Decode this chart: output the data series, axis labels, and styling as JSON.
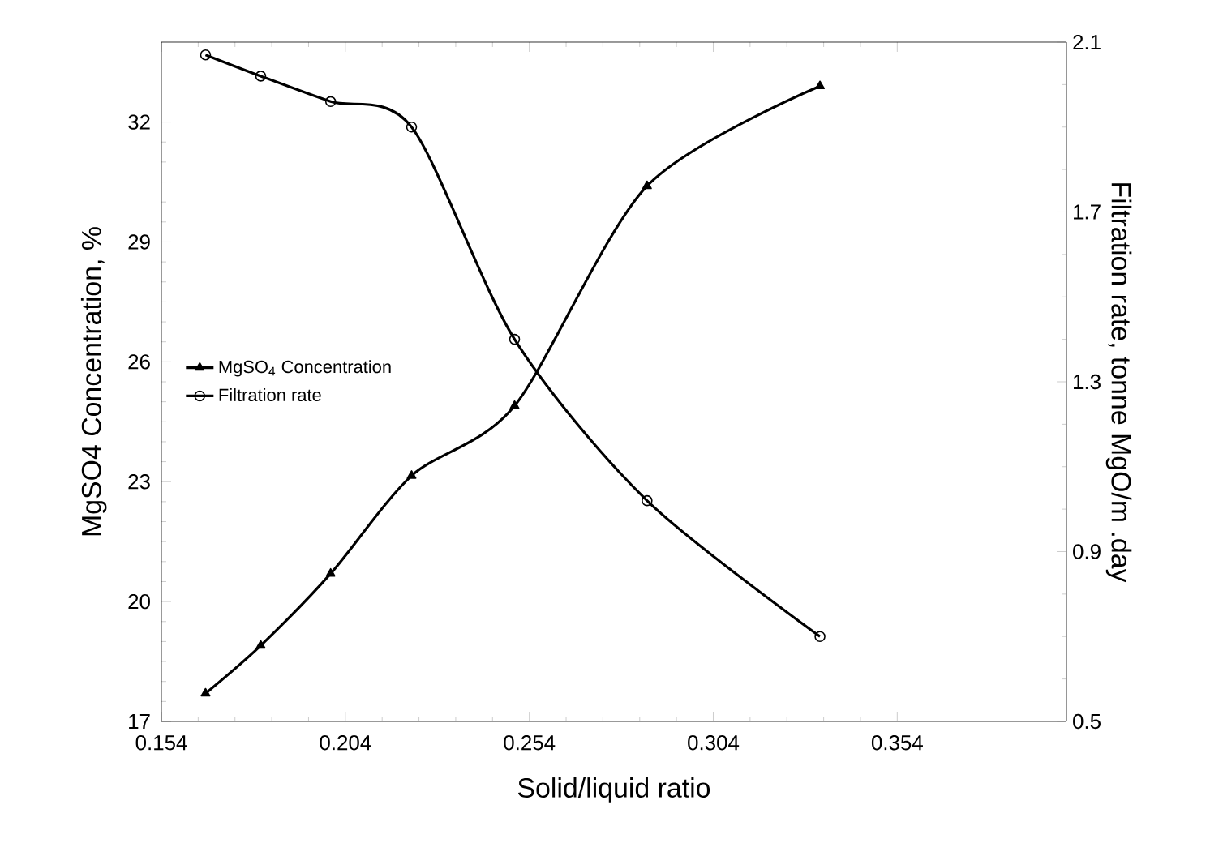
{
  "chart_data": {
    "type": "line",
    "xlabel": "Solid/liquid ratio",
    "ylabel": "MgSO4 Concentration, %",
    "y2label": "Filtration rate, tonne MgO/m .day",
    "xlim": [
      0.154,
      0.4
    ],
    "xticks": [
      0.154,
      0.204,
      0.254,
      0.304,
      0.354
    ],
    "ylim": [
      17,
      34
    ],
    "yticks": [
      17,
      20,
      23,
      26,
      29,
      32
    ],
    "y2lim": [
      0.5,
      2.1
    ],
    "y2ticks": [
      0.5,
      0.9,
      1.3,
      1.7,
      2.1
    ],
    "legend": "left",
    "grid": false,
    "line_style": "solid",
    "series": [
      {
        "name": "MgSO$_{4}$ Concentration",
        "color": "#000000",
        "marker": "triangle",
        "x": [
          0.166,
          0.181,
          0.2,
          0.222,
          0.25,
          0.286,
          0.333
        ],
        "values": [
          17.7,
          18.9,
          20.7,
          23.15,
          24.9,
          30.4,
          32.9
        ]
      },
      {
        "name": "Filtration rate",
        "color": "#000000",
        "marker": "circle",
        "axis": "y2",
        "x": [
          0.166,
          0.181,
          0.2,
          0.222,
          0.25,
          0.286,
          0.333
        ],
        "values": [
          2.07,
          2.02,
          1.96,
          1.9,
          1.4,
          1.02,
          0.7
        ]
      }
    ]
  }
}
